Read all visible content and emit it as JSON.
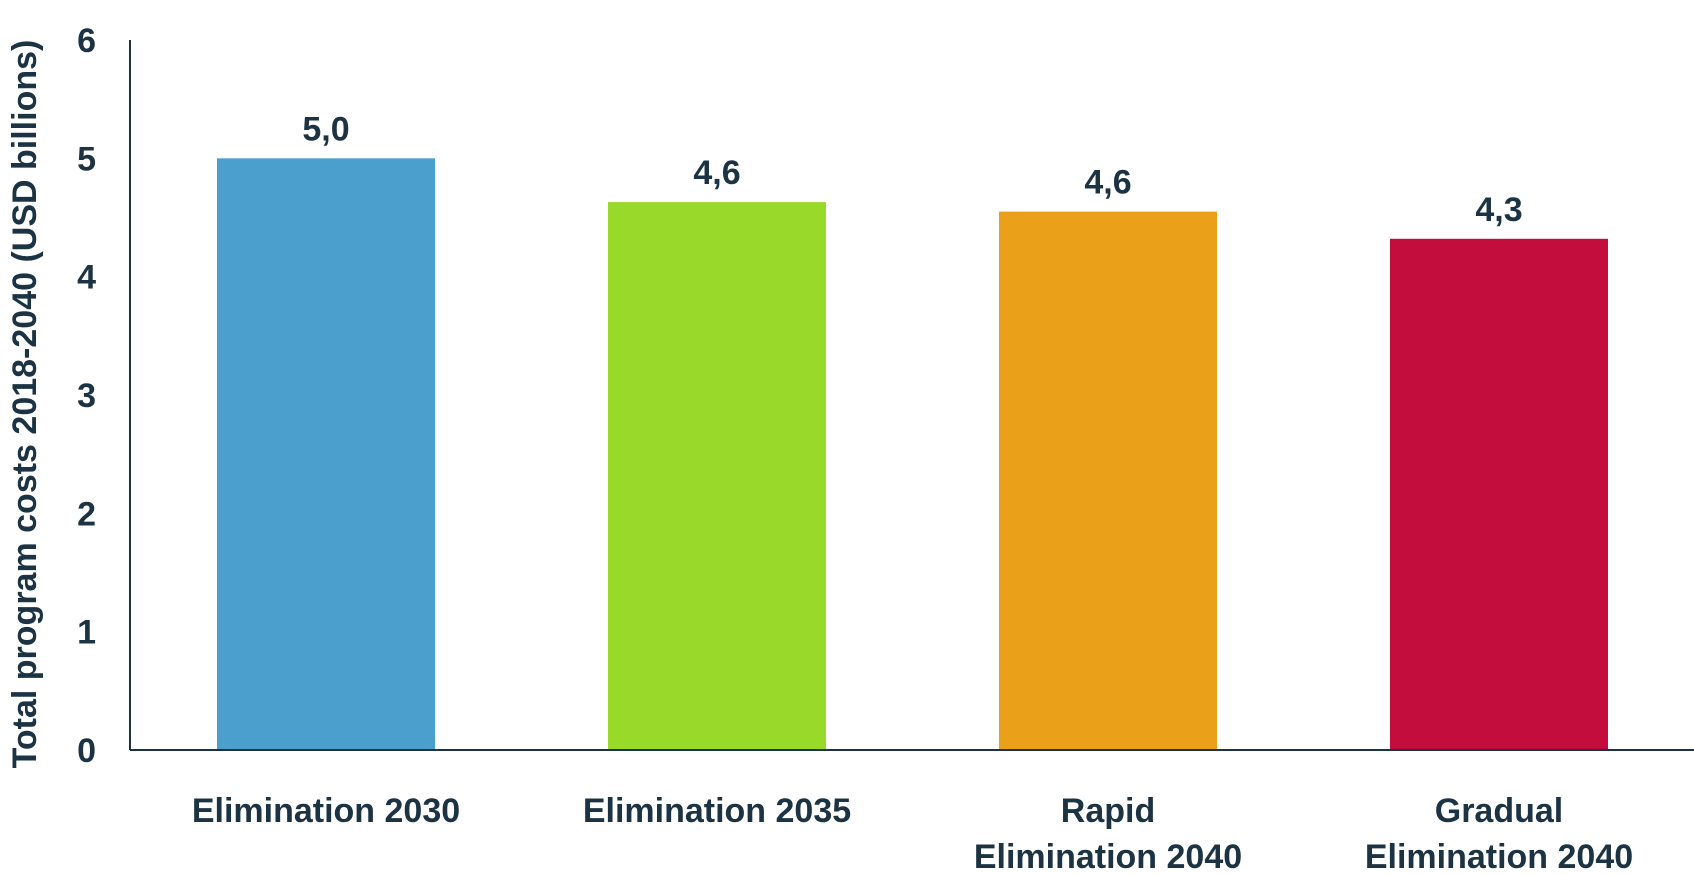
{
  "chart_data": {
    "type": "bar",
    "title": "",
    "xlabel": "",
    "ylabel": "Total program costs 2018-2040 (USD billions)",
    "ylim": [
      0,
      6
    ],
    "yticks": [
      0,
      1,
      2,
      3,
      4,
      5,
      6
    ],
    "grid": false,
    "categories": [
      [
        "Elimination 2030"
      ],
      [
        "Elimination 2035"
      ],
      [
        "Rapid",
        "Elimination 2040"
      ],
      [
        "Gradual",
        "Elimination 2040"
      ]
    ],
    "values": [
      5.0,
      4.63,
      4.55,
      4.32
    ],
    "value_labels": [
      "5,0",
      "4,6",
      "4,6",
      "4,3"
    ],
    "colors": [
      "#4a9fcd",
      "#98d929",
      "#eba019",
      "#c30d3c"
    ],
    "axis_color": "#1c3344",
    "text_color": "#1c3344"
  }
}
